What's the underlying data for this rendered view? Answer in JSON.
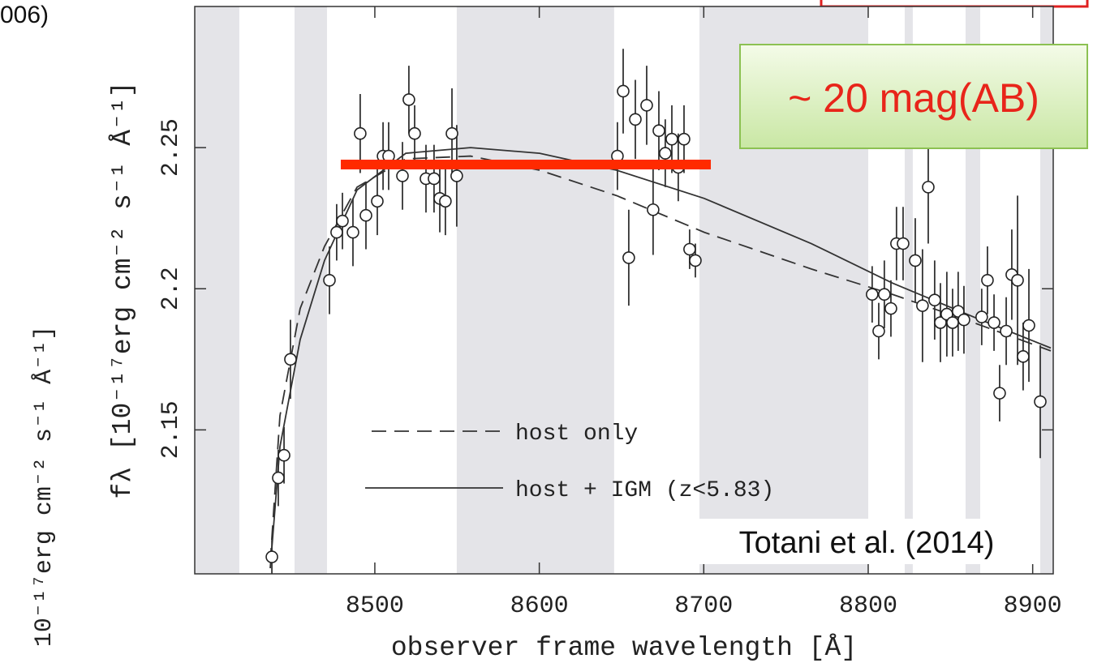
{
  "chart_data": {
    "type": "scatter",
    "fragment": "006)",
    "left_label": "10⁻¹⁷erg cm⁻² s⁻¹ Å⁻¹]",
    "ylabel": "fλ [10⁻¹⁷erg cm⁻² s⁻¹ Å⁻¹]",
    "xlabel": "observer frame wavelength [Å]",
    "xlim": [
      8390.5,
      8912.5
    ],
    "ylim": [
      2.099,
      2.3
    ],
    "xticks": [
      8500,
      8600,
      8700,
      8800,
      8900
    ],
    "yticks": [
      2.15,
      2.2,
      2.25
    ],
    "masked_regions": [
      [
        8390.5,
        8417.6
      ],
      [
        8451.2,
        8470.9
      ],
      [
        8549.8,
        8645.5
      ],
      [
        8697.4,
        8800
      ],
      [
        8822.2,
        8827.1
      ],
      [
        8859.2,
        8868.1
      ],
      [
        8904.6,
        8912.5
      ]
    ],
    "x": [
      8437.4,
      8441.3,
      8444.8,
      8448.7,
      8472.4,
      8476.8,
      8480.3,
      8486.7,
      8491.1,
      8494.6,
      8501.5,
      8505,
      8508.4,
      8516.8,
      8520.7,
      8524.2,
      8531.1,
      8536,
      8539.5,
      8542.9,
      8546.9,
      8549.8,
      8647.5,
      8651,
      8654.4,
      8658.4,
      8665.3,
      8669.2,
      8672.7,
      8676.6,
      8680.6,
      8684.5,
      8688,
      8691.4,
      8694.9,
      8802.4,
      8806.4,
      8809.8,
      8813.8,
      8817.2,
      8821.2,
      8828.6,
      8833,
      8836.5,
      8840.4,
      8843.9,
      8847.8,
      8851.3,
      8854.7,
      8858.2,
      8869,
      8872.5,
      8876.5,
      8879.9,
      8883.9,
      8887.3,
      8890.8,
      8894.2,
      8897.7,
      8904.6
    ],
    "y": [
      2.105,
      2.133,
      2.141,
      2.175,
      2.203,
      2.22,
      2.224,
      2.22,
      2.255,
      2.226,
      2.231,
      2.247,
      2.247,
      2.24,
      2.267,
      2.255,
      2.239,
      2.239,
      2.232,
      2.231,
      2.255,
      2.24,
      2.247,
      2.27,
      2.211,
      2.26,
      2.265,
      2.228,
      2.256,
      2.248,
      2.253,
      2.243,
      2.253,
      2.214,
      2.21,
      2.198,
      2.185,
      2.198,
      2.193,
      2.216,
      2.216,
      2.21,
      2.194,
      2.236,
      2.196,
      2.188,
      2.191,
      2.188,
      2.192,
      2.189,
      2.19,
      2.203,
      2.188,
      2.163,
      2.185,
      2.205,
      2.203,
      2.176,
      2.187,
      2.16
    ],
    "errors": [
      0.006,
      0.01,
      0.01,
      0.014,
      0.012,
      0.01,
      0.01,
      0.012,
      0.014,
      0.012,
      0.012,
      0.012,
      0.012,
      0.012,
      0.012,
      0.01,
      0.012,
      0.012,
      0.012,
      0.012,
      0.016,
      0.018,
      0.012,
      0.015,
      0.017,
      0.014,
      0.014,
      0.016,
      0.014,
      0.012,
      0.012,
      0.012,
      0.012,
      0.007,
      0.006,
      0.01,
      0.01,
      0.012,
      0.01,
      0.013,
      0.013,
      0.015,
      0.02,
      0.02,
      0.014,
      0.014,
      0.015,
      0.012,
      0.014,
      0.012,
      0.01,
      0.012,
      0.01,
      0.01,
      0.012,
      0.016,
      0.03,
      0.012,
      0.02,
      0.02
    ],
    "model_x": [
      8436.4,
      8442.3,
      8454.6,
      8469.4,
      8489.2,
      8518.8,
      8558.2,
      8600.2,
      8647,
      8700.3,
      8765.4,
      8814.8,
      8864.1,
      8911
    ],
    "lines": [
      {
        "name": "host only",
        "dash": true,
        "values": [
          2.103,
          2.155,
          2.193,
          2.215,
          2.236,
          2.246,
          2.247,
          2.242,
          2.233,
          2.22,
          2.207,
          2.198,
          2.188,
          2.178
        ]
      },
      {
        "name": "host + IGM (z<5.83)",
        "dash": false,
        "values": [
          2.101,
          2.144,
          2.182,
          2.21,
          2.235,
          2.248,
          2.25,
          2.248,
          2.242,
          2.232,
          2.216,
          2.202,
          2.19,
          2.179
        ]
      }
    ],
    "flux_level": {
      "x": [
        8479.3,
        8704.3
      ],
      "y": 2.244,
      "color": "#ff2a00"
    },
    "annotations": {
      "magnitude": "~ 20 mag(AB)",
      "reference": "Totani et al. (2014)"
    }
  }
}
